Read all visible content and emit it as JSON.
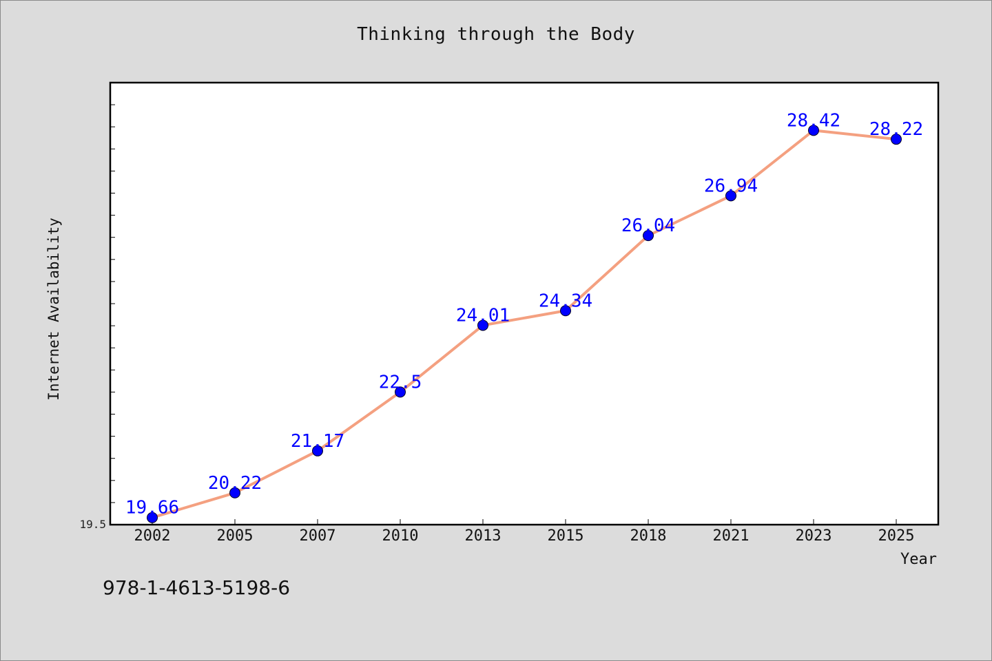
{
  "chart_data": {
    "type": "line",
    "title": "Thinking through the Body",
    "xlabel": "Year",
    "ylabel": "Internet Availability",
    "categories": [
      "2002",
      "2005",
      "2007",
      "2010",
      "2013",
      "2015",
      "2018",
      "2021",
      "2023",
      "2025"
    ],
    "values": [
      19.66,
      20.22,
      21.17,
      22.5,
      24.01,
      24.34,
      26.04,
      26.94,
      28.42,
      28.22
    ],
    "data_labels": [
      "19.66",
      "20.22",
      "21.17",
      "22.5",
      "24.01",
      "24.34",
      "26.04",
      "26.94",
      "28.42",
      "28.22"
    ],
    "ylim": [
      19.5,
      29.5
    ],
    "y_tick_labels": [
      "19.5"
    ],
    "grid": false,
    "legend": "none",
    "colors": {
      "line": "#f4a080",
      "marker": "#0000ff",
      "data_label": "#0000ff",
      "plot_background": "#ffffff",
      "page_background": "#dcdcdc"
    }
  },
  "footer": {
    "isbn": "978-1-4613-5198-6"
  }
}
